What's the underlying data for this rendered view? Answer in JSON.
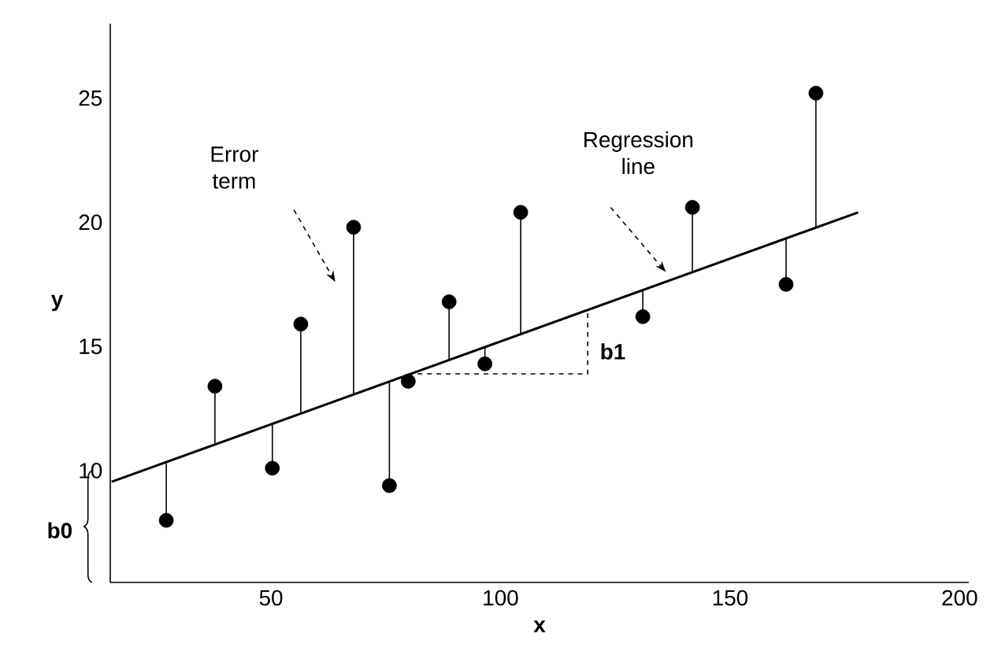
{
  "chart_data": {
    "type": "scatter",
    "xlabel": "x",
    "ylabel": "y",
    "xlim": [
      15,
      202
    ],
    "ylim": [
      5.5,
      28
    ],
    "xticks": [
      50,
      100,
      150,
      200
    ],
    "yticks": [
      10,
      15,
      20,
      25
    ],
    "annotations": [
      "Error term",
      "Regression line",
      "b1",
      "b0"
    ],
    "series": [
      {
        "type": "scatter",
        "color": "#000000",
        "marker": "circle",
        "x": [
          27.2,
          37.8,
          50.3,
          56.5,
          68.0,
          75.8,
          79.9,
          88.8,
          96.6,
          104.4,
          131.0,
          141.8,
          162.2,
          168.7
        ],
        "values": [
          8.0,
          13.4,
          10.1,
          15.9,
          19.8,
          9.4,
          13.6,
          16.8,
          14.3,
          20.4,
          16.2,
          20.6,
          17.5,
          25.2
        ],
        "errors": [
          [
            8.0,
            10.3
          ],
          [
            11.1,
            13.4
          ],
          [
            10.1,
            11.9
          ],
          [
            12.3,
            15.9
          ],
          [
            13.1,
            19.8
          ],
          [
            9.4,
            13.6
          ],
          null,
          [
            14.5,
            16.8
          ],
          [
            14.3,
            15.0
          ],
          [
            15.5,
            20.4
          ],
          [
            16.2,
            17.3
          ],
          [
            18.0,
            20.6
          ],
          [
            17.5,
            19.4
          ],
          [
            19.8,
            25.2
          ]
        ]
      },
      {
        "type": "line",
        "color": "#000000",
        "line_style": "solid",
        "marker": "none",
        "x": [
          15.3,
          177.9
        ],
        "values": [
          9.55,
          20.4
        ]
      }
    ]
  }
}
